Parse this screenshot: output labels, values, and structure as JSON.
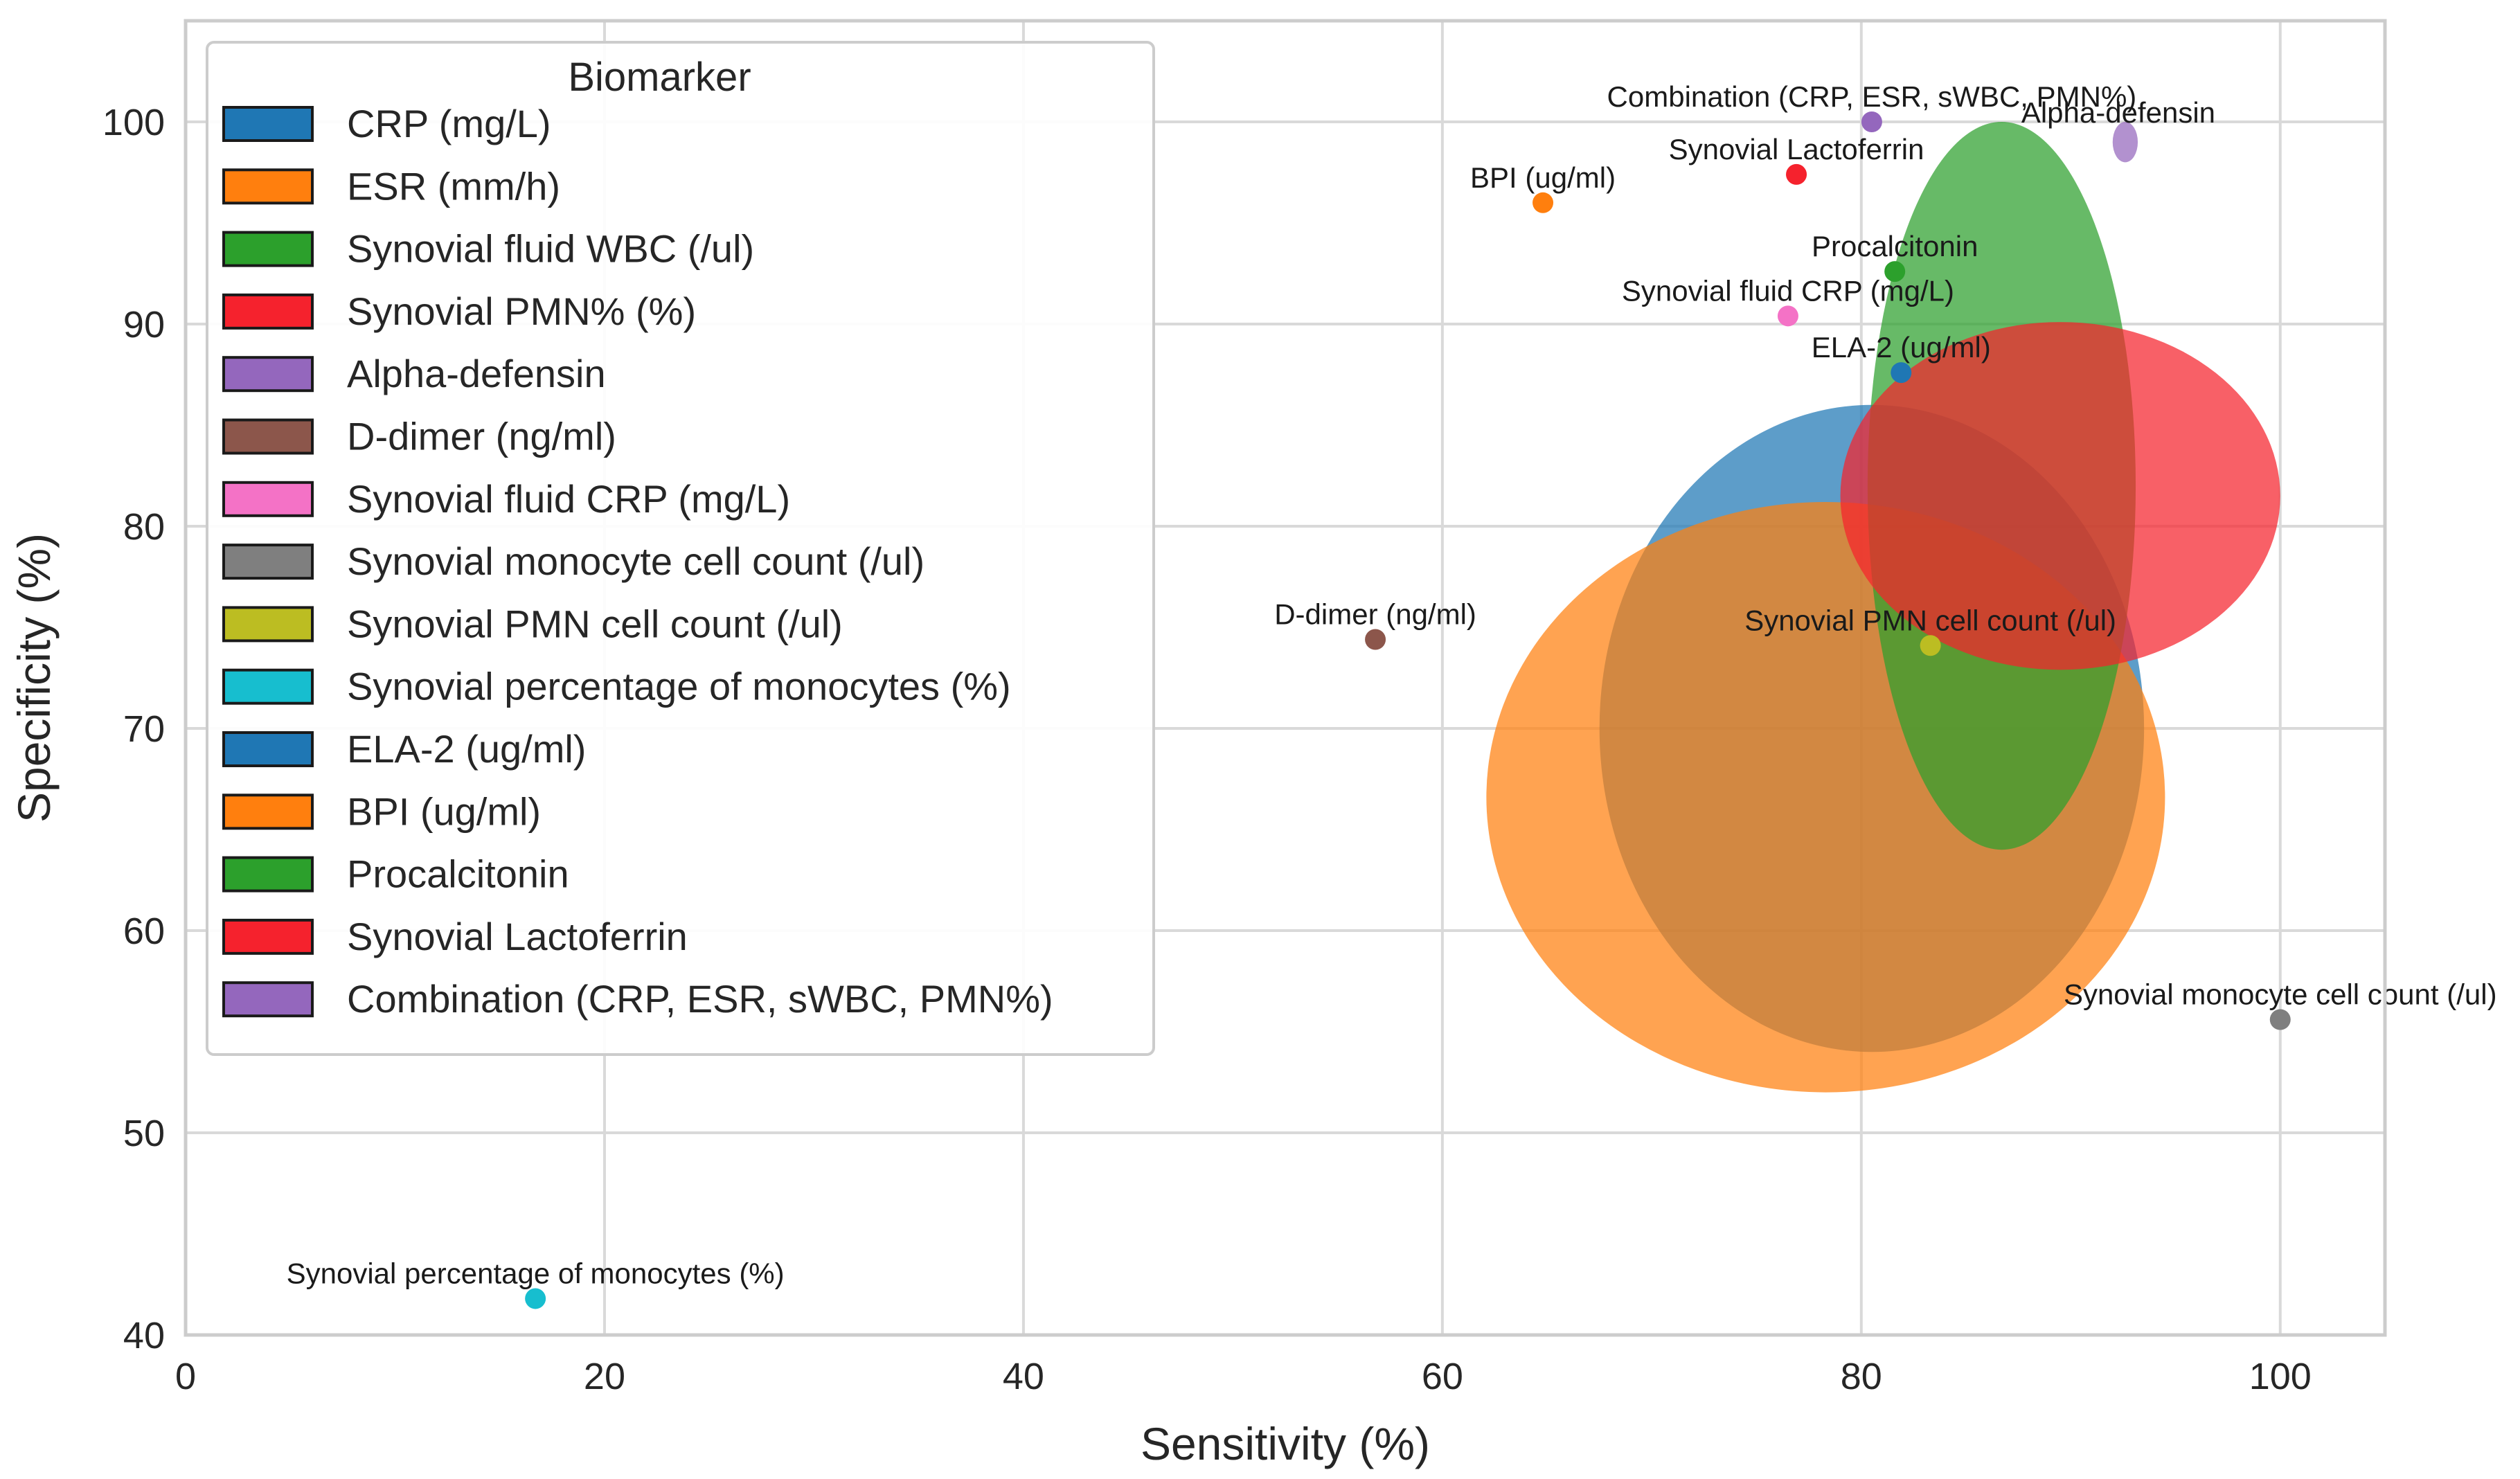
{
  "chart_data": {
    "type": "scatter",
    "xlabel": "Sensitivity (%)",
    "ylabel": "Specificity (%)",
    "xlim": [
      0,
      105
    ],
    "ylim": [
      40,
      105
    ],
    "xticks": [
      0,
      20,
      40,
      60,
      80,
      100
    ],
    "yticks": [
      40,
      50,
      60,
      70,
      80,
      90,
      100
    ],
    "grid": true,
    "legend": {
      "title": "Biomarker",
      "placement": "top-left"
    },
    "series": [
      {
        "name": "CRP (mg/L)",
        "color": "#1f77b4",
        "x": 80.5,
        "y": 70.0,
        "sens_ci": [
          67.5,
          93.5
        ],
        "spec_ci": [
          54.0,
          86.0
        ]
      },
      {
        "name": "ESR (mm/h)",
        "color": "#ff7f0e",
        "x": 78.3,
        "y": 66.6,
        "sens_ci": [
          62.1,
          94.5
        ],
        "spec_ci": [
          52.0,
          81.2
        ]
      },
      {
        "name": "Synovial fluid WBC (/ul)",
        "color": "#2ca02c",
        "x": 86.7,
        "y": 73.6,
        "sens_ci": [
          80.3,
          93.1
        ],
        "spec_ci": [
          64.0,
          100.0
        ]
      },
      {
        "name": "Synovial PMN% (%)",
        "color": "#f5222d",
        "x": 89.5,
        "y": 81.5,
        "sens_ci": [
          79.0,
          100.0
        ],
        "spec_ci": [
          72.9,
          90.1
        ]
      },
      {
        "name": "Alpha-defensin",
        "color": "#9467bd",
        "x": 92.6,
        "y": 99.0,
        "sens_ci": [
          92.0,
          93.2
        ],
        "spec_ci": [
          98.0,
          100.0
        ]
      },
      {
        "name": "D-dimer (ng/ml)",
        "color": "#8c564b",
        "x": 56.8,
        "y": 74.4
      },
      {
        "name": "Synovial fluid CRP (mg/L)",
        "color": "#f472c6",
        "x": 76.5,
        "y": 90.4
      },
      {
        "name": "Synovial monocyte cell count (/ul)",
        "color": "#7f7f7f",
        "x": 100,
        "y": 55.6
      },
      {
        "name": "Synovial PMN cell count (/ul)",
        "color": "#bcbd22",
        "x": 83.3,
        "y": 74.1
      },
      {
        "name": "Synovial percentage of monocytes (%)",
        "color": "#17becf",
        "x": 16.7,
        "y": 41.8
      },
      {
        "name": "ELA-2 (ug/ml)",
        "color": "#1f77b4",
        "x": 81.9,
        "y": 87.6
      },
      {
        "name": "BPI (ug/ml)",
        "color": "#ff7f0e",
        "x": 64.8,
        "y": 96.0
      },
      {
        "name": "Procalcitonin",
        "color": "#2ca02c",
        "x": 81.6,
        "y": 92.6
      },
      {
        "name": "Synovial Lactoferrin",
        "color": "#f5222d",
        "x": 76.9,
        "y": 97.4
      },
      {
        "name": "Combination (CRP, ESR, sWBC, PMN%)",
        "color": "#9467bd",
        "x": 80.5,
        "y": 100.0
      }
    ],
    "point_labels": [
      {
        "text": "Combination (CRP, ESR, sWBC, PMN%)",
        "series": "Combination (CRP, ESR, sWBC, PMN%)"
      },
      {
        "text": "Alpha-defensin",
        "series": "Alpha-defensin"
      },
      {
        "text": "Synovial Lactoferrin",
        "series": "Synovial Lactoferrin"
      },
      {
        "text": "BPI (ug/ml)",
        "series": "BPI (ug/ml)"
      },
      {
        "text": "Procalcitonin",
        "series": "Procalcitonin"
      },
      {
        "text": "Synovial fluid CRP (mg/L)",
        "series": "Synovial fluid CRP (mg/L)"
      },
      {
        "text": "ELA-2 (ug/ml)",
        "series": "ELA-2 (ug/ml)"
      },
      {
        "text": "D-dimer (ng/ml)",
        "series": "D-dimer (ng/ml)"
      },
      {
        "text": "Synovial PMN cell count (/ul)",
        "series": "Synovial PMN cell count (/ul)"
      },
      {
        "text": "Synovial monocyte cell count (/ul)",
        "series": "Synovial monocyte cell count (/ul)"
      },
      {
        "text": "Synovial percentage of monocytes (%)",
        "series": "Synovial percentage of monocytes (%)"
      }
    ]
  }
}
